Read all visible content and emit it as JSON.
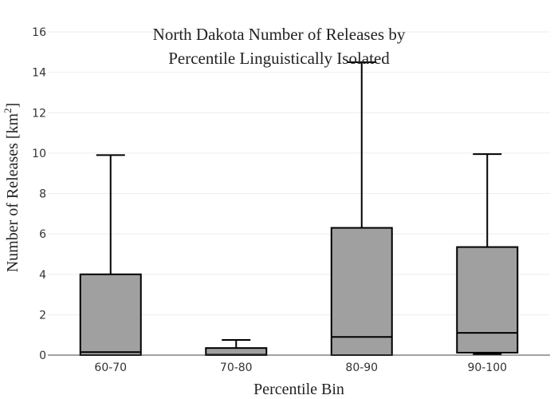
{
  "chart_data": {
    "type": "box",
    "title_lines": [
      "North Dakota Number of Releases by",
      "Percentile Linguistically Isolated"
    ],
    "xlabel": "Percentile Bin",
    "ylabel_main": "Number of Releases  [km",
    "ylabel_sup": "2",
    "ylabel_end": "]",
    "ylim": [
      0,
      16
    ],
    "yticks": [
      "0",
      "2",
      "4",
      "6",
      "8",
      "10",
      "12",
      "14",
      "16"
    ],
    "box_color": "#a0a0a0",
    "categories": [
      "60-70",
      "70-80",
      "80-90",
      "90-100"
    ],
    "boxes": [
      {
        "min": 0,
        "q1": 0,
        "median": 0.15,
        "q3": 4.0,
        "max": 9.9
      },
      {
        "min": 0,
        "q1": 0,
        "median": 0.02,
        "q3": 0.35,
        "max": 0.75
      },
      {
        "min": 0,
        "q1": 0,
        "median": 0.9,
        "q3": 6.3,
        "max": 14.5
      },
      {
        "min": 0.05,
        "q1": 0.12,
        "median": 1.1,
        "q3": 5.35,
        "max": 9.95
      }
    ]
  }
}
